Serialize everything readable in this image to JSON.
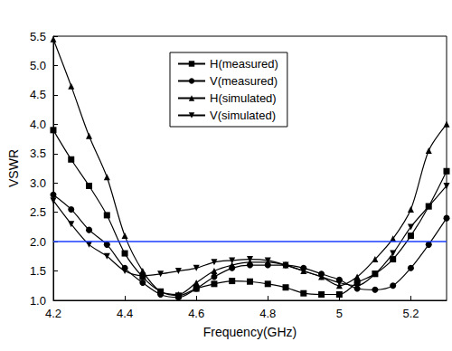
{
  "chart_data": {
    "type": "line",
    "x_label": "Frequency(GHz)",
    "y_label": "VSWR",
    "x": [
      4.2,
      4.25,
      4.3,
      4.35,
      4.4,
      4.45,
      4.5,
      4.55,
      4.6,
      4.65,
      4.7,
      4.75,
      4.8,
      4.85,
      4.9,
      4.95,
      5.0,
      5.05,
      5.1,
      5.15,
      5.2,
      5.25,
      5.3
    ],
    "series": [
      {
        "name": "H(measured)",
        "color": "#000000",
        "marker": "square",
        "line_style": "solid",
        "values": [
          3.9,
          3.4,
          2.95,
          2.45,
          1.8,
          1.4,
          1.15,
          1.08,
          1.2,
          1.28,
          1.33,
          1.32,
          1.28,
          1.22,
          1.12,
          1.1,
          1.1,
          1.3,
          1.45,
          1.7,
          2.1,
          2.6,
          3.2
        ]
      },
      {
        "name": "V(measured)",
        "color": "#000000",
        "marker": "circle",
        "line_style": "solid",
        "values": [
          2.8,
          2.55,
          2.2,
          1.95,
          1.55,
          1.3,
          1.1,
          1.05,
          1.2,
          1.4,
          1.55,
          1.6,
          1.6,
          1.6,
          1.55,
          1.45,
          1.35,
          1.2,
          1.18,
          1.25,
          1.55,
          1.95,
          2.4
        ]
      },
      {
        "name": "H(simulated)",
        "color": "#000000",
        "marker": "triangle",
        "line_style": "solid",
        "values": [
          5.45,
          4.65,
          3.8,
          3.1,
          2.1,
          1.5,
          1.15,
          1.1,
          1.3,
          1.5,
          1.6,
          1.65,
          1.65,
          1.6,
          1.5,
          1.4,
          1.25,
          1.4,
          1.7,
          2.05,
          2.55,
          3.55,
          4.0
        ]
      },
      {
        "name": "V(simulated)",
        "color": "#000000",
        "marker": "triangle-down",
        "line_style": "solid",
        "values": [
          2.7,
          2.3,
          1.95,
          1.75,
          1.5,
          1.42,
          1.45,
          1.5,
          1.55,
          1.65,
          1.68,
          1.7,
          1.68,
          1.6,
          1.5,
          1.4,
          1.3,
          1.25,
          1.45,
          1.8,
          2.25,
          2.6,
          2.95
        ]
      }
    ],
    "reference_lines": [
      {
        "y": 2,
        "color": "#1a3cff"
      }
    ],
    "xlim": [
      4.2,
      5.3
    ],
    "xticks": [
      4.2,
      4.4,
      4.6,
      4.8,
      5.0,
      5.2
    ],
    "ylim": [
      1.0,
      5.5
    ],
    "yticks": [
      {
        "value": 1.0,
        "label": "1.0"
      },
      1.5,
      {
        "value": 2.0,
        "label": "2.0"
      },
      2.5,
      {
        "value": 3.0,
        "label": "3.0"
      },
      3.5,
      {
        "value": 4.0,
        "label": "4.0"
      },
      4.5,
      {
        "value": 5.0,
        "label": "5.0"
      },
      5.5
    ],
    "legend": "top-center",
    "grid": false
  }
}
